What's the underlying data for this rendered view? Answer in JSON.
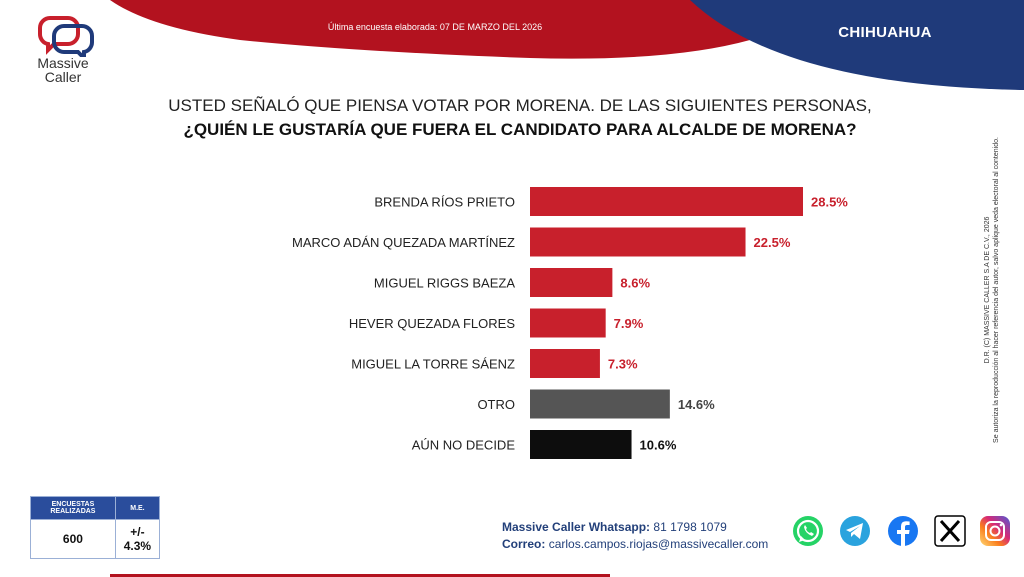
{
  "header": {
    "survey_date": "Última encuesta elaborada: 07 DE MARZO DEL 2026",
    "state": "CHIHUAHUA",
    "brand_line1": "Massive",
    "brand_line2": "Caller"
  },
  "question": {
    "line1": "USTED SEÑALÓ QUE PIENSA VOTAR POR MORENA. DE LAS SIGUIENTES PERSONAS,",
    "line2": "¿QUIÉN LE GUSTARÍA QUE FUERA EL CANDIDATO PARA ALCALDE DE MORENA?"
  },
  "chart_data": {
    "type": "bar",
    "orientation": "horizontal",
    "title": "",
    "xlabel": "",
    "ylabel": "",
    "categories": [
      "BRENDA RÍOS PRIETO",
      "MARCO ADÁN QUEZADA MARTÍNEZ",
      "MIGUEL RIGGS BAEZA",
      "HEVER QUEZADA FLORES",
      "MIGUEL LA TORRE SÁENZ",
      "OTRO",
      "AÚN NO DECIDE"
    ],
    "values": [
      28.5,
      22.5,
      8.6,
      7.9,
      7.3,
      14.6,
      10.6
    ],
    "value_labels": [
      "28.5%",
      "22.5%",
      "8.6%",
      "7.9%",
      "7.3%",
      "14.6%",
      "10.6%"
    ],
    "bar_colors": [
      "#c8202c",
      "#c8202c",
      "#c8202c",
      "#c8202c",
      "#c8202c",
      "#555555",
      "#0d0d0d"
    ],
    "label_colors": [
      "#c8202c",
      "#c8202c",
      "#c8202c",
      "#c8202c",
      "#c8202c",
      "#444444",
      "#111111"
    ],
    "xlim": [
      0,
      30
    ],
    "grid": false,
    "legend": "none"
  },
  "stats": {
    "col1_header": "ENCUESTAS REALIZADAS",
    "col2_header": "M.E.",
    "col1_value": "600",
    "col2_value": "+/- 4.3%"
  },
  "contact": {
    "whatsapp_label": "Massive Caller Whatsapp:",
    "whatsapp_number": "81 1798 1079",
    "email_label": "Correo:",
    "email": "carlos.campos.riojas@massivecaller.com"
  },
  "legal": {
    "line1": "D.R. (C) MASSIVE CALLER S.A DE C.V., 2026",
    "line2": "Se autoriza la reproducción al hacer referencia del autor, salvo aplique veda electoral al contenido."
  },
  "social_icons": [
    "whatsapp-icon",
    "telegram-icon",
    "facebook-icon",
    "x-icon",
    "instagram-icon"
  ],
  "colors": {
    "brand_red": "#b3121f",
    "brand_blue": "#1f3a7a"
  }
}
